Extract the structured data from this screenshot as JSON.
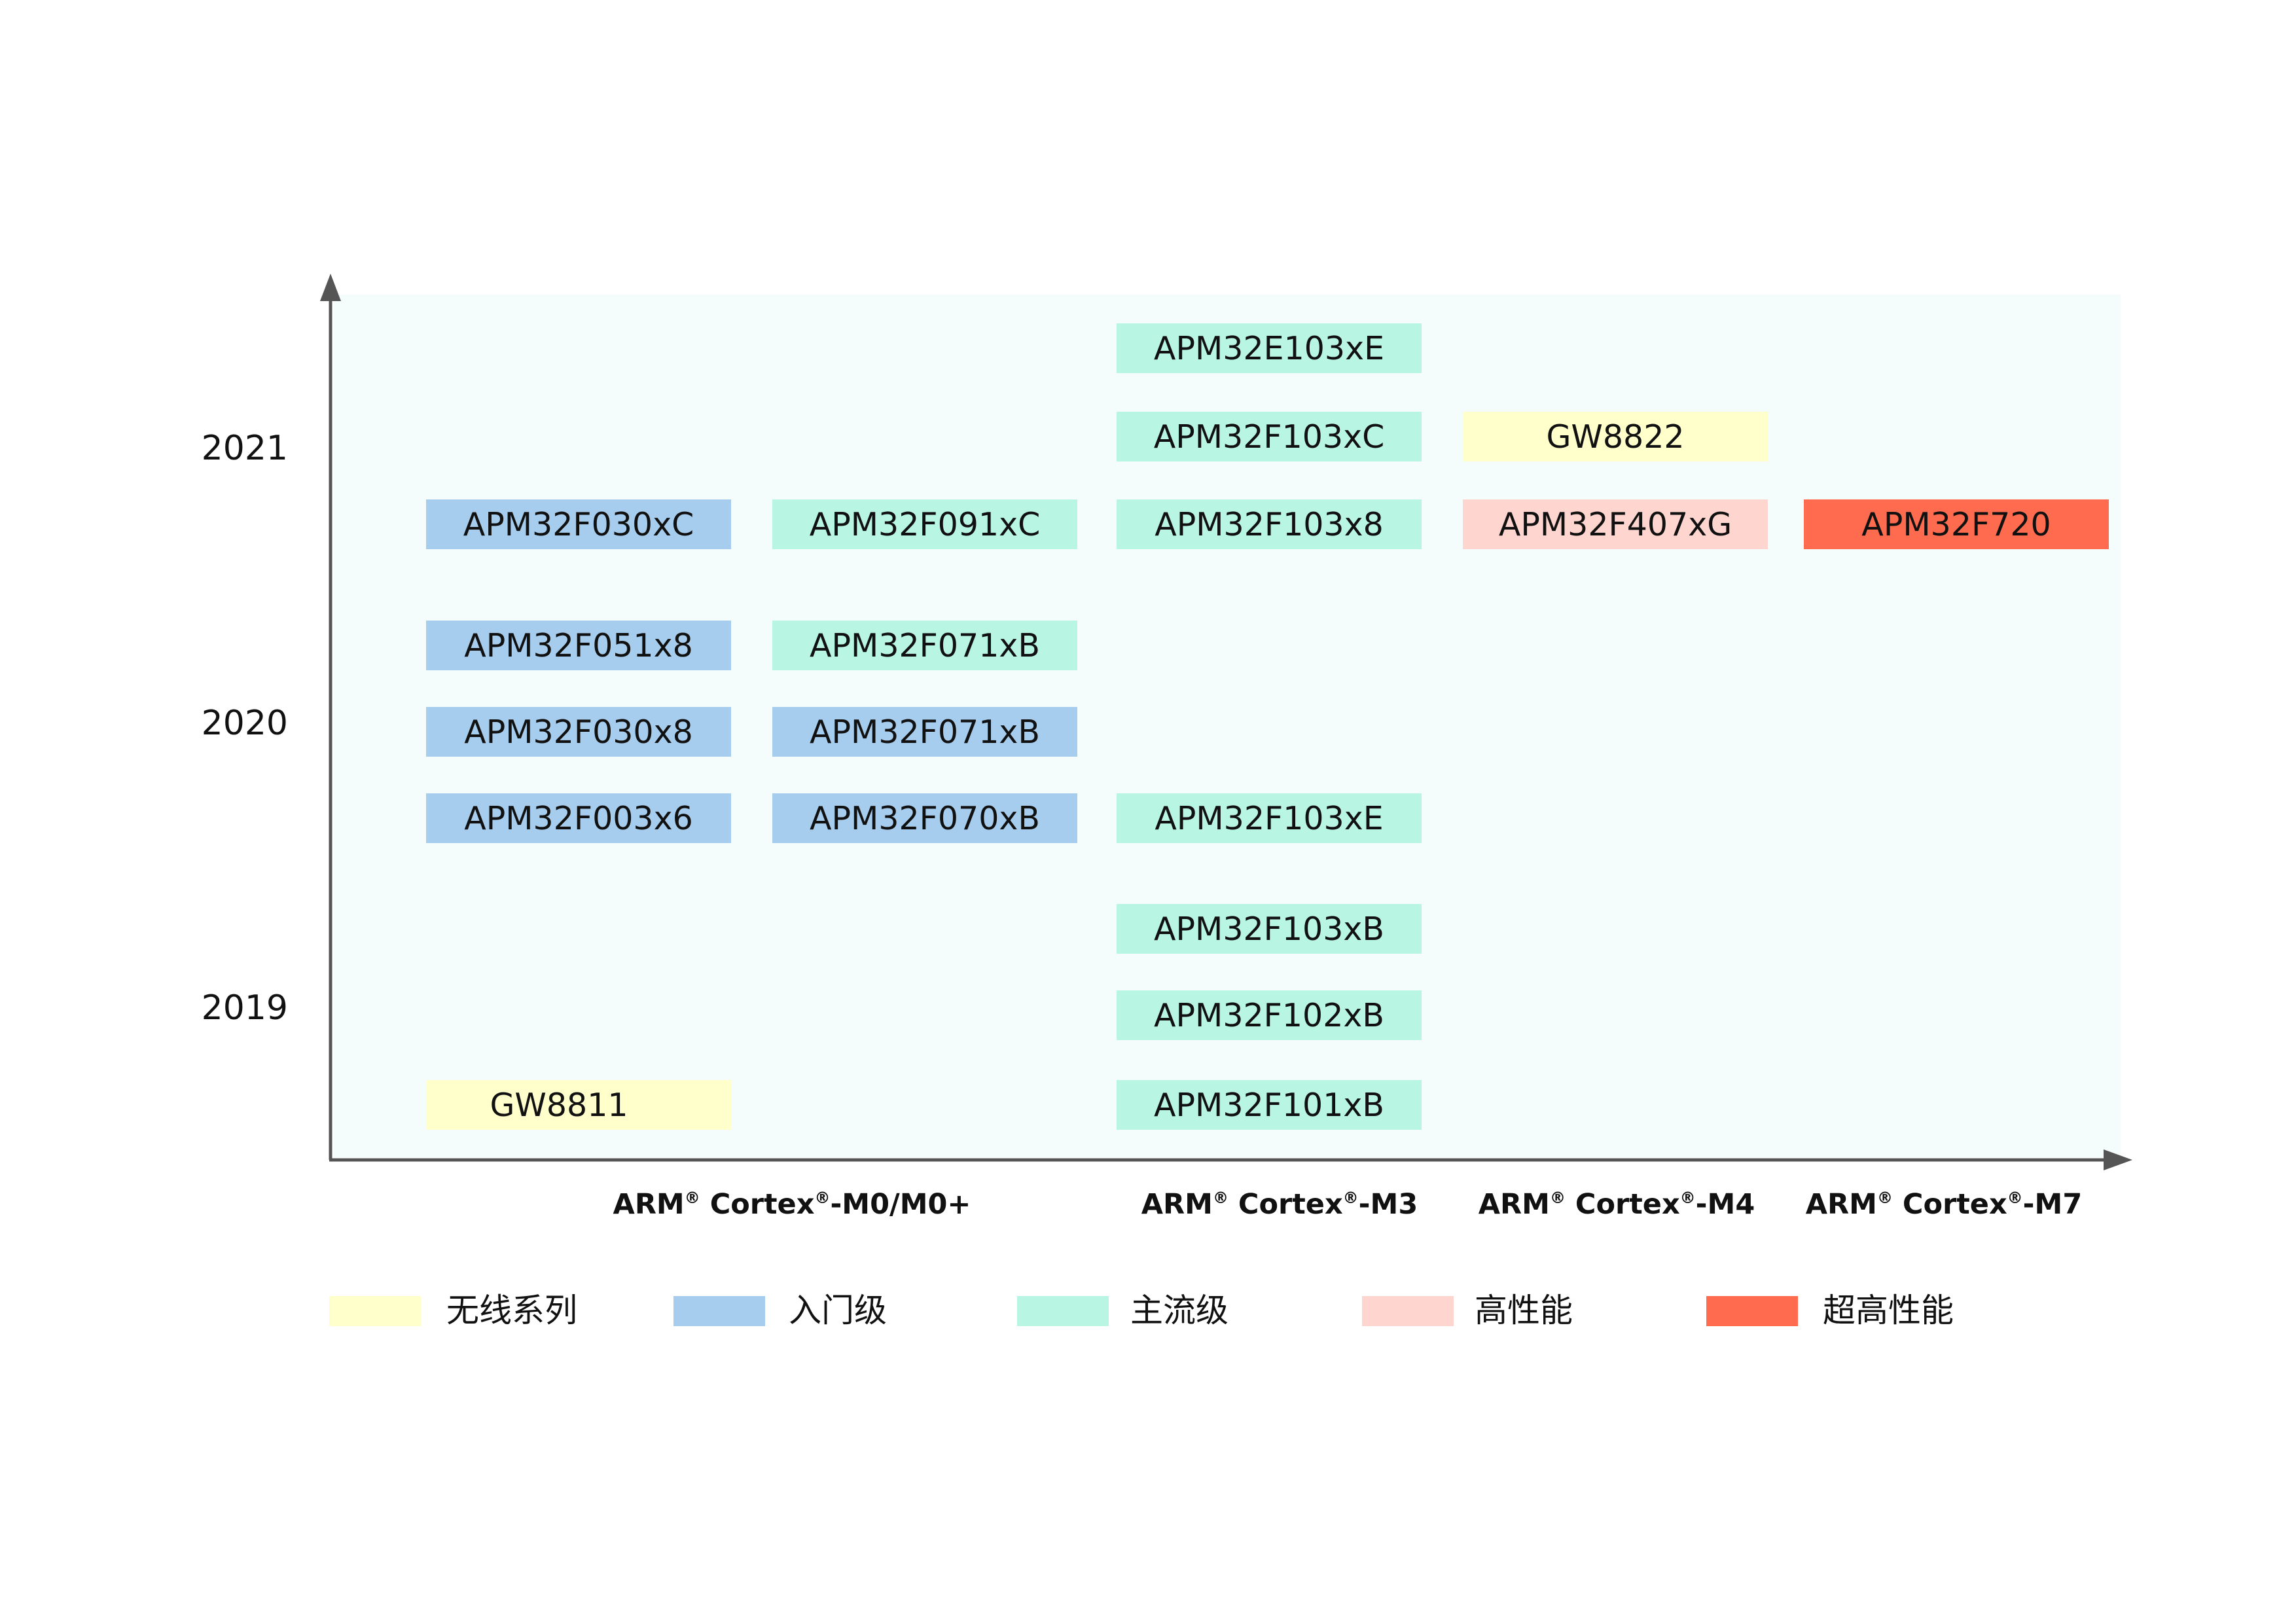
{
  "colors": {
    "wireless": "#ffffcc",
    "entry": "#a7cdee",
    "mainstream": "#b9f5e3",
    "high_performance": "#ffd6cf",
    "ultra_high_performance": "#ff6b4e",
    "axis": "#555555"
  },
  "years": [
    "2021",
    "2020",
    "2019"
  ],
  "columns": [
    {
      "label": "ARM",
      "mark": "®",
      "label2": " Cortex",
      "mark2": "®",
      "suffix": "-M0/M0+"
    },
    {
      "label": "ARM",
      "mark": "®",
      "label2": " Cortex",
      "mark2": "®",
      "suffix": "-M3"
    },
    {
      "label": "ARM",
      "mark": "®",
      "label2": " Cortex",
      "mark2": "®",
      "suffix": "-M4"
    },
    {
      "label": "ARM",
      "mark": "®",
      "label2": " Cortex",
      "mark2": "®",
      "suffix": "-M7"
    }
  ],
  "chips": [
    {
      "name": "APM32E103xE",
      "category": "mainstream"
    },
    {
      "name": "APM32F103xC",
      "category": "mainstream"
    },
    {
      "name": "GW8822",
      "category": "wireless"
    },
    {
      "name": "APM32F030xC",
      "category": "entry"
    },
    {
      "name": "APM32F091xC",
      "category": "mainstream"
    },
    {
      "name": "APM32F103x8",
      "category": "mainstream"
    },
    {
      "name": "APM32F407xG",
      "category": "high_performance"
    },
    {
      "name": "APM32F720",
      "category": "ultra_high_performance"
    },
    {
      "name": "APM32F051x8",
      "category": "entry"
    },
    {
      "name": "APM32F071xB",
      "category": "mainstream"
    },
    {
      "name": "APM32F030x8",
      "category": "entry"
    },
    {
      "name": "APM32F071xB",
      "category": "entry"
    },
    {
      "name": "APM32F003x6",
      "category": "entry"
    },
    {
      "name": "APM32F070xB",
      "category": "entry"
    },
    {
      "name": "APM32F103xE",
      "category": "mainstream"
    },
    {
      "name": "APM32F103xB",
      "category": "mainstream"
    },
    {
      "name": "APM32F102xB",
      "category": "mainstream"
    },
    {
      "name": "GW8811",
      "category": "wireless"
    },
    {
      "name": "APM32F101xB",
      "category": "mainstream"
    }
  ],
  "legend": [
    {
      "key": "wireless",
      "label": "无线系列"
    },
    {
      "key": "entry",
      "label": "入门级"
    },
    {
      "key": "mainstream",
      "label": "主流级"
    },
    {
      "key": "high_performance",
      "label": "高性能"
    },
    {
      "key": "ultra_high_performance",
      "label": "超高性能"
    }
  ]
}
